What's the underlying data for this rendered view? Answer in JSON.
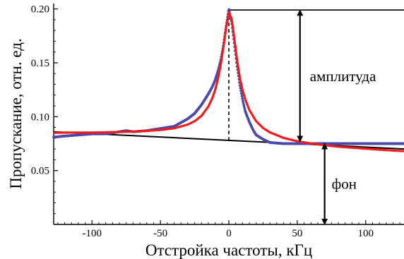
{
  "chart_data": {
    "type": "line",
    "xlabel": "Отстройка частоты, кГц",
    "ylabel": "Пропускание, отн. ед.",
    "xlim": [
      -128,
      128
    ],
    "ylim": [
      0.0,
      0.205
    ],
    "x_ticks": [
      -100,
      -50,
      0,
      50,
      100
    ],
    "x_tick_labels": [
      "-100",
      "-50",
      "0",
      "50",
      "100"
    ],
    "y_ticks": [
      0.05,
      0.1,
      0.15,
      0.2
    ],
    "y_tick_labels": [
      "0.05",
      "0.10",
      "0.15",
      "0.20"
    ],
    "grid": false,
    "series": [
      {
        "role": "measured",
        "style": "dots",
        "color": "#4a4aa8",
        "x": [
          -128,
          -120,
          -110,
          -100,
          -90,
          -80,
          -75,
          -70,
          -60,
          -50,
          -40,
          -30,
          -25,
          -20,
          -15,
          -12,
          -10,
          -8,
          -6,
          -4,
          -2,
          0,
          2,
          4,
          6,
          8,
          10,
          12,
          15,
          18,
          20,
          25,
          30,
          40,
          50,
          60,
          70,
          80,
          90,
          100,
          110,
          120,
          128
        ],
        "y": [
          0.081,
          0.082,
          0.083,
          0.084,
          0.084,
          0.086,
          0.087,
          0.086,
          0.087,
          0.089,
          0.091,
          0.098,
          0.103,
          0.111,
          0.121,
          0.128,
          0.134,
          0.142,
          0.152,
          0.166,
          0.184,
          0.2,
          0.188,
          0.168,
          0.147,
          0.13,
          0.116,
          0.105,
          0.095,
          0.087,
          0.083,
          0.079,
          0.076,
          0.075,
          0.075,
          0.075,
          0.075,
          0.075,
          0.075,
          0.075,
          0.075,
          0.075,
          0.075
        ]
      },
      {
        "role": "fit",
        "style": "line",
        "color": "#ee1c1c",
        "x": [
          -128,
          -120,
          -110,
          -100,
          -90,
          -80,
          -70,
          -60,
          -50,
          -40,
          -30,
          -25,
          -20,
          -15,
          -12,
          -10,
          -8,
          -6,
          -4,
          -2,
          0,
          2,
          4,
          6,
          8,
          10,
          12,
          15,
          20,
          25,
          30,
          40,
          50,
          60,
          70,
          80,
          90,
          100,
          110,
          120,
          128
        ],
        "y": [
          0.085,
          0.0852,
          0.0852,
          0.0853,
          0.0855,
          0.0858,
          0.0862,
          0.0868,
          0.0877,
          0.0892,
          0.0927,
          0.0958,
          0.1008,
          0.1093,
          0.1175,
          0.1248,
          0.1347,
          0.1478,
          0.1645,
          0.1822,
          0.1965,
          0.1912,
          0.1725,
          0.1525,
          0.1362,
          0.1245,
          0.116,
          0.1062,
          0.0957,
          0.0895,
          0.0855,
          0.0803,
          0.0772,
          0.0751,
          0.0735,
          0.0722,
          0.0712,
          0.0703,
          0.0694,
          0.0686,
          0.068
        ]
      },
      {
        "role": "background",
        "style": "line",
        "color": "#000000",
        "x": [
          -128,
          128
        ],
        "y": [
          0.086,
          0.07
        ]
      }
    ],
    "annotations": [
      {
        "text": "амплитуда",
        "arrow": "double",
        "x": 52,
        "y_from": 0.077,
        "y_to": 0.199
      },
      {
        "text": "фон",
        "arrow": "double",
        "x": 70,
        "y_from": 0.0,
        "y_to": 0.075
      }
    ]
  }
}
